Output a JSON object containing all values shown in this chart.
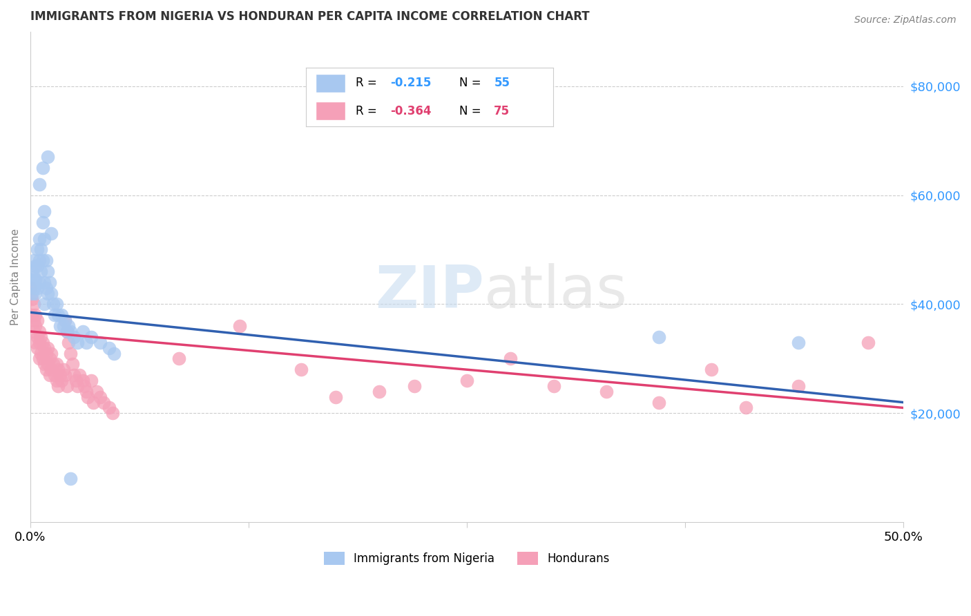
{
  "title": "IMMIGRANTS FROM NIGERIA VS HONDURAN PER CAPITA INCOME CORRELATION CHART",
  "source": "Source: ZipAtlas.com",
  "ylabel": "Per Capita Income",
  "xlim": [
    0.0,
    0.5
  ],
  "ylim": [
    0,
    90000
  ],
  "yticks": [
    20000,
    40000,
    60000,
    80000
  ],
  "ytick_labels": [
    "$20,000",
    "$40,000",
    "$60,000",
    "$80,000"
  ],
  "xticks": [
    0.0,
    0.125,
    0.25,
    0.375,
    0.5
  ],
  "xtick_labels": [
    "0.0%",
    "",
    "",
    "",
    "50.0%"
  ],
  "blue_color": "#A8C8F0",
  "pink_color": "#F5A0B8",
  "blue_line_color": "#3060B0",
  "pink_line_color": "#E04070",
  "watermark_zip": "ZIP",
  "watermark_atlas": "atlas",
  "background_color": "#FFFFFF",
  "nigeria_scatter": [
    [
      0.0,
      44500
    ],
    [
      0.001,
      46000
    ],
    [
      0.001,
      42000
    ],
    [
      0.002,
      48000
    ],
    [
      0.002,
      45000
    ],
    [
      0.002,
      43000
    ],
    [
      0.003,
      47000
    ],
    [
      0.003,
      44500
    ],
    [
      0.003,
      42000
    ],
    [
      0.004,
      50000
    ],
    [
      0.004,
      47000
    ],
    [
      0.004,
      43000
    ],
    [
      0.005,
      52000
    ],
    [
      0.005,
      48000
    ],
    [
      0.005,
      44000
    ],
    [
      0.006,
      50000
    ],
    [
      0.006,
      46000
    ],
    [
      0.007,
      55000
    ],
    [
      0.007,
      48000
    ],
    [
      0.008,
      52000
    ],
    [
      0.008,
      44000
    ],
    [
      0.008,
      40000
    ],
    [
      0.009,
      48000
    ],
    [
      0.009,
      43000
    ],
    [
      0.01,
      46000
    ],
    [
      0.01,
      42000
    ],
    [
      0.011,
      44000
    ],
    [
      0.012,
      42000
    ],
    [
      0.013,
      40000
    ],
    [
      0.014,
      38000
    ],
    [
      0.015,
      40000
    ],
    [
      0.016,
      38000
    ],
    [
      0.017,
      36000
    ],
    [
      0.018,
      38000
    ],
    [
      0.019,
      36000
    ],
    [
      0.02,
      37000
    ],
    [
      0.021,
      35000
    ],
    [
      0.022,
      36000
    ],
    [
      0.023,
      35000
    ],
    [
      0.025,
      34000
    ],
    [
      0.027,
      33000
    ],
    [
      0.03,
      35000
    ],
    [
      0.032,
      33000
    ],
    [
      0.005,
      62000
    ],
    [
      0.007,
      65000
    ],
    [
      0.01,
      67000
    ],
    [
      0.008,
      57000
    ],
    [
      0.012,
      53000
    ],
    [
      0.035,
      34000
    ],
    [
      0.04,
      33000
    ],
    [
      0.045,
      32000
    ],
    [
      0.048,
      31000
    ],
    [
      0.023,
      8000
    ],
    [
      0.36,
      34000
    ],
    [
      0.44,
      33000
    ]
  ],
  "honduran_scatter": [
    [
      0.0,
      43000
    ],
    [
      0.001,
      41000
    ],
    [
      0.001,
      38000
    ],
    [
      0.002,
      40000
    ],
    [
      0.002,
      37000
    ],
    [
      0.002,
      35000
    ],
    [
      0.003,
      38000
    ],
    [
      0.003,
      36000
    ],
    [
      0.003,
      33000
    ],
    [
      0.004,
      37000
    ],
    [
      0.004,
      34000
    ],
    [
      0.004,
      32000
    ],
    [
      0.005,
      35000
    ],
    [
      0.005,
      33000
    ],
    [
      0.005,
      30000
    ],
    [
      0.006,
      34000
    ],
    [
      0.006,
      31000
    ],
    [
      0.007,
      33000
    ],
    [
      0.007,
      30000
    ],
    [
      0.008,
      32000
    ],
    [
      0.008,
      29000
    ],
    [
      0.009,
      31000
    ],
    [
      0.009,
      28000
    ],
    [
      0.01,
      32000
    ],
    [
      0.01,
      29000
    ],
    [
      0.011,
      30000
    ],
    [
      0.011,
      27000
    ],
    [
      0.012,
      31000
    ],
    [
      0.012,
      28000
    ],
    [
      0.013,
      29000
    ],
    [
      0.014,
      27000
    ],
    [
      0.015,
      29000
    ],
    [
      0.015,
      26000
    ],
    [
      0.016,
      28000
    ],
    [
      0.016,
      25000
    ],
    [
      0.017,
      27000
    ],
    [
      0.018,
      26000
    ],
    [
      0.019,
      28000
    ],
    [
      0.02,
      37000
    ],
    [
      0.02,
      27000
    ],
    [
      0.021,
      35000
    ],
    [
      0.021,
      25000
    ],
    [
      0.022,
      33000
    ],
    [
      0.023,
      31000
    ],
    [
      0.024,
      29000
    ],
    [
      0.025,
      27000
    ],
    [
      0.026,
      26000
    ],
    [
      0.027,
      25000
    ],
    [
      0.028,
      27000
    ],
    [
      0.03,
      26000
    ],
    [
      0.031,
      25000
    ],
    [
      0.032,
      24000
    ],
    [
      0.033,
      23000
    ],
    [
      0.035,
      26000
    ],
    [
      0.036,
      22000
    ],
    [
      0.038,
      24000
    ],
    [
      0.04,
      23000
    ],
    [
      0.042,
      22000
    ],
    [
      0.045,
      21000
    ],
    [
      0.047,
      20000
    ],
    [
      0.085,
      30000
    ],
    [
      0.12,
      36000
    ],
    [
      0.155,
      28000
    ],
    [
      0.175,
      23000
    ],
    [
      0.2,
      24000
    ],
    [
      0.22,
      25000
    ],
    [
      0.25,
      26000
    ],
    [
      0.275,
      30000
    ],
    [
      0.3,
      25000
    ],
    [
      0.33,
      24000
    ],
    [
      0.36,
      22000
    ],
    [
      0.39,
      28000
    ],
    [
      0.41,
      21000
    ],
    [
      0.44,
      25000
    ],
    [
      0.48,
      33000
    ]
  ],
  "nigeria_line_x": [
    0.0,
    0.5
  ],
  "nigeria_line_y": [
    38500,
    22000
  ],
  "honduran_line_x": [
    0.0,
    0.5
  ],
  "honduran_line_y": [
    35000,
    21000
  ]
}
